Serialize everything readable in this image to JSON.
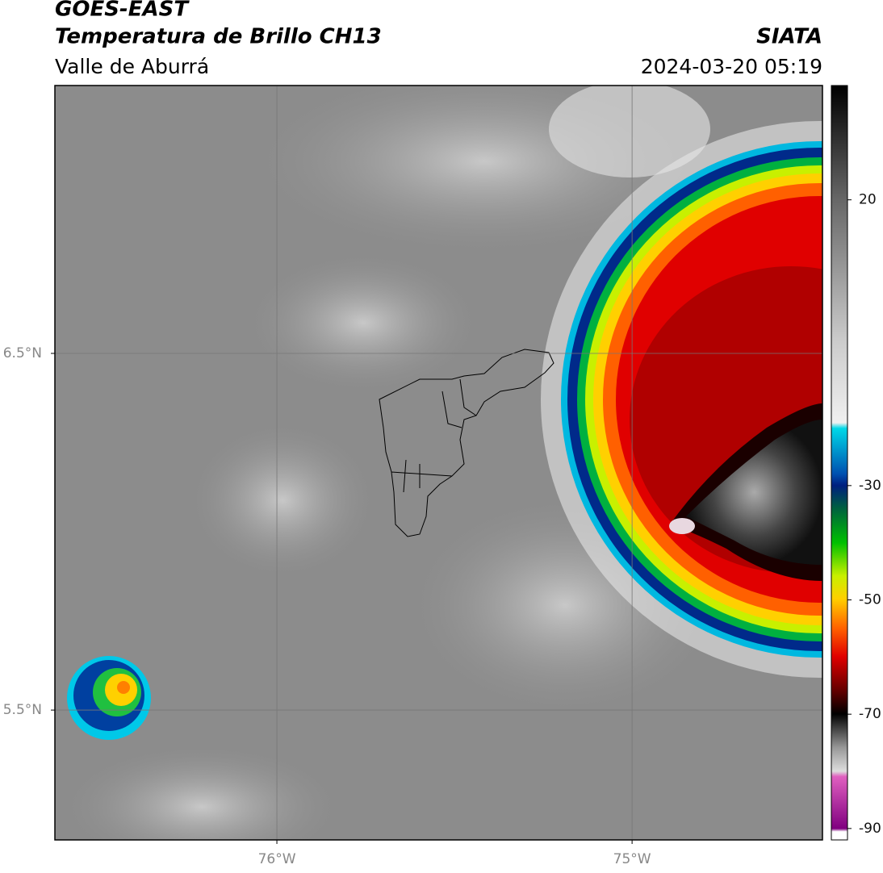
{
  "header": {
    "title": "GOES-EAST",
    "subtitle": "Temperatura de Brillo CH13",
    "region": "Valle de Aburrá",
    "source": "SIATA",
    "timestamp": "2024-03-20 05:19"
  },
  "map": {
    "xlim": [
      -76.625,
      -74.464
    ],
    "ylim": [
      5.136,
      7.251
    ],
    "xticks": [
      {
        "value": -76,
        "label": "76°W"
      },
      {
        "value": -75,
        "label": "75°W"
      }
    ],
    "yticks": [
      {
        "value": 6.5,
        "label": "6.5°N"
      },
      {
        "value": 5.5,
        "label": "5.5°N"
      }
    ],
    "grid": true
  },
  "colorbar": {
    "clim": [
      -92,
      40
    ],
    "ticks": [
      20,
      -30,
      -50,
      -70,
      -90
    ]
  }
}
